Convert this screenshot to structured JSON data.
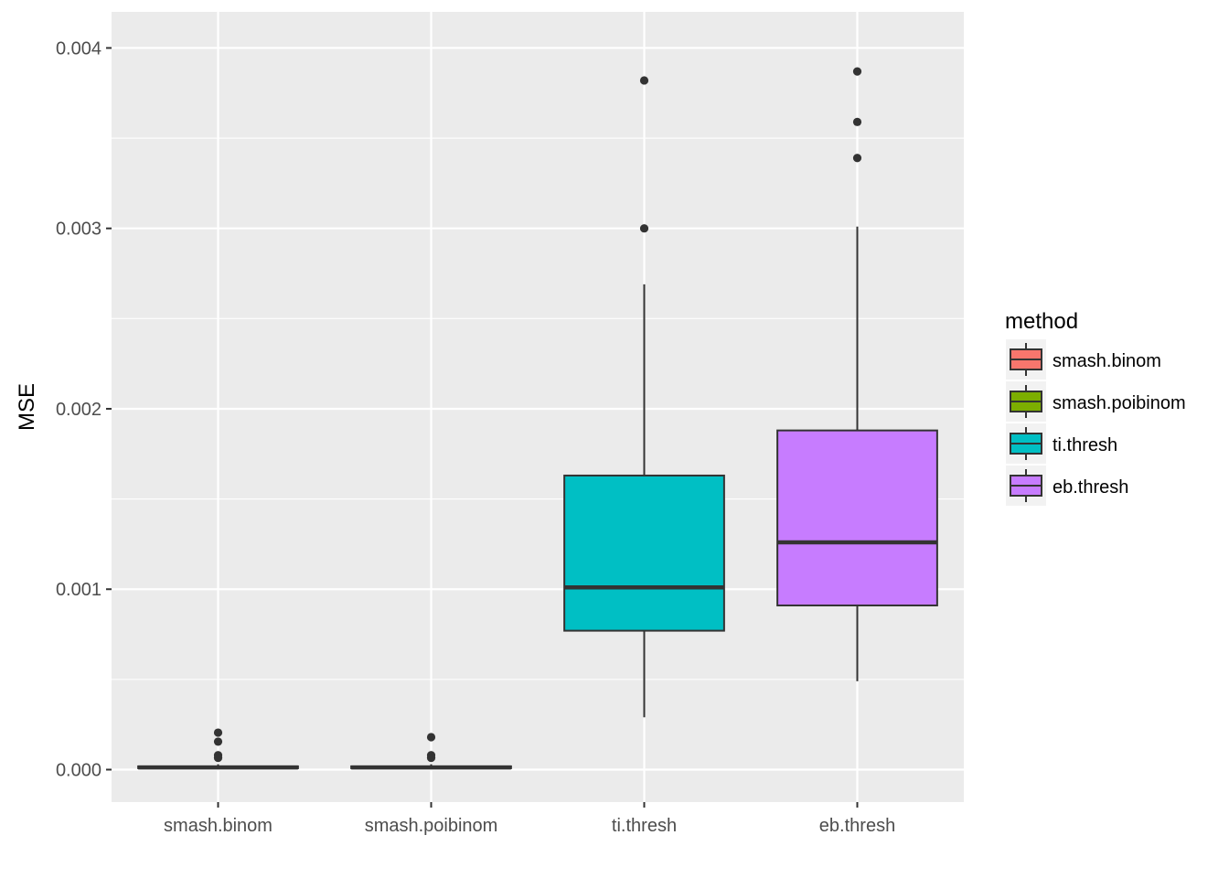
{
  "chart_data": {
    "type": "boxplot",
    "title": "",
    "xlabel": "",
    "ylabel": "MSE",
    "ylim": [
      -0.00018,
      0.0042
    ],
    "y_ticks": [
      0.0,
      0.001,
      0.002,
      0.003,
      0.004
    ],
    "y_tick_labels": [
      "0.000",
      "0.001",
      "0.002",
      "0.003",
      "0.004"
    ],
    "categories": [
      "smash.binom",
      "smash.poibinom",
      "ti.thresh",
      "eb.thresh"
    ],
    "grid": true,
    "legend": {
      "title": "method",
      "position": "right",
      "entries": [
        "smash.binom",
        "smash.poibinom",
        "ti.thresh",
        "eb.thresh"
      ]
    },
    "series": [
      {
        "name": "smash.binom",
        "color": "#F8766D",
        "whisker_low": 3e-06,
        "q1": 8e-06,
        "median": 1.2e-05,
        "q3": 1.8e-05,
        "whisker_high": 3e-05,
        "outliers": [
          0.000205,
          0.000155,
          8e-05,
          6.5e-05
        ]
      },
      {
        "name": "smash.poibinom",
        "color": "#7CAE00",
        "whisker_low": 3e-06,
        "q1": 8e-06,
        "median": 1.2e-05,
        "q3": 1.8e-05,
        "whisker_high": 3e-05,
        "outliers": [
          0.00018,
          8e-05,
          6.5e-05
        ]
      },
      {
        "name": "ti.thresh",
        "color": "#00BFC4",
        "whisker_low": 0.00029,
        "q1": 0.00077,
        "median": 0.00101,
        "q3": 0.00163,
        "whisker_high": 0.00269,
        "outliers": [
          0.003,
          0.00382
        ]
      },
      {
        "name": "eb.thresh",
        "color": "#C77CFF",
        "whisker_low": 0.00049,
        "q1": 0.00091,
        "median": 0.00126,
        "q3": 0.00188,
        "whisker_high": 0.00301,
        "outliers": [
          0.00339,
          0.00359,
          0.00387
        ]
      }
    ]
  }
}
